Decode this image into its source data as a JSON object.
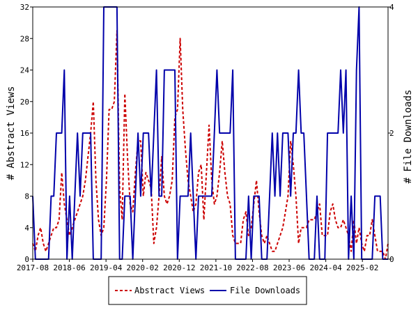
{
  "chart_data": {
    "type": "line",
    "ylabel_left": "# Abstract Views",
    "ylabel_right": "# File Downloads",
    "ylim_left": [
      0,
      32
    ],
    "ylim_right": [
      0,
      4
    ],
    "yticks_left": [
      0,
      4,
      8,
      12,
      16,
      20,
      24,
      28,
      32
    ],
    "yticks_right": [
      0,
      2,
      4
    ],
    "x_range": [
      "2017-08",
      "2025-09"
    ],
    "xticks": [
      "2017-08",
      "2018-06",
      "2019-04",
      "2020-02",
      "2020-12",
      "2021-10",
      "2022-08",
      "2023-06",
      "2024-04",
      "2025-02"
    ],
    "grid": false,
    "legend_position": "bottom",
    "colors": {
      "abstract_views": "#cc0000",
      "file_downloads": "#0000aa"
    },
    "series": [
      {
        "name": "Abstract Views",
        "axis": "left",
        "style": "dashed",
        "values": [
          2,
          1,
          3,
          4,
          2,
          1,
          2,
          3,
          4,
          4,
          5,
          11,
          7,
          5,
          3,
          4,
          5,
          6,
          7,
          8,
          10,
          13,
          16,
          20,
          10,
          5,
          3,
          4,
          10,
          19,
          19,
          20,
          29,
          9,
          5,
          21,
          13,
          7,
          6,
          11,
          15,
          15,
          8,
          11,
          10,
          9,
          2,
          4,
          8,
          13,
          8,
          7,
          8,
          10,
          18,
          19,
          28,
          19,
          14,
          10,
          8,
          6,
          7,
          11,
          12,
          5,
          11,
          17,
          10,
          7,
          8,
          11,
          15,
          11,
          8,
          7,
          3,
          2,
          2,
          2,
          5,
          6,
          3,
          4,
          7,
          10,
          6,
          3,
          2,
          3,
          2,
          1,
          1,
          2,
          3,
          4,
          6,
          8,
          15,
          12,
          8,
          2,
          4,
          4,
          4,
          5,
          5,
          5,
          6,
          7,
          3,
          3,
          3,
          6,
          7,
          5,
          4,
          4,
          5,
          4,
          3,
          1,
          5,
          2,
          4,
          2,
          1,
          3,
          3,
          5,
          3,
          1,
          1,
          1,
          0,
          2
        ]
      },
      {
        "name": "File Downloads",
        "axis": "right",
        "style": "solid",
        "values": [
          1,
          0,
          0,
          0,
          0,
          0,
          0,
          1,
          1,
          2,
          2,
          2,
          3,
          0,
          1,
          0,
          1,
          2,
          1,
          2,
          2,
          2,
          2,
          0,
          0,
          0,
          0,
          4,
          4,
          4,
          4,
          4,
          4,
          0,
          0,
          1,
          1,
          1,
          0,
          1,
          2,
          1,
          2,
          2,
          2,
          1,
          2,
          3,
          1,
          1,
          3,
          3,
          3,
          3,
          3,
          0,
          1,
          1,
          1,
          1,
          2,
          1,
          0,
          1,
          1,
          1,
          1,
          1,
          1,
          2,
          3,
          2,
          2,
          2,
          2,
          2,
          3,
          0,
          0,
          0,
          0,
          0,
          1,
          0,
          1,
          1,
          1,
          0,
          0,
          0,
          1,
          2,
          1,
          2,
          1,
          2,
          2,
          2,
          1,
          2,
          2,
          3,
          2,
          2,
          1,
          0,
          0,
          0,
          1,
          0,
          0,
          0,
          2,
          2,
          2,
          2,
          2,
          3,
          2,
          3,
          0,
          1,
          0,
          3,
          4,
          0,
          0,
          0,
          0,
          0,
          1,
          1,
          1,
          0,
          0,
          0
        ]
      }
    ]
  }
}
